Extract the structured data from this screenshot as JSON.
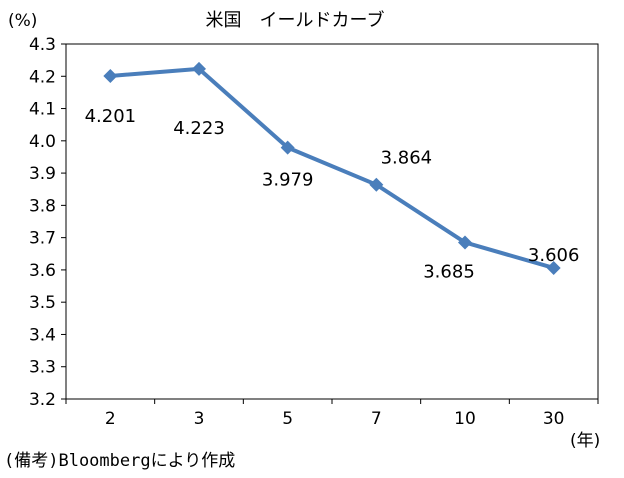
{
  "chart_data": {
    "type": "line",
    "title": "米国　イールドカーブ",
    "ylabel": "(%)",
    "xlabel": "(年)",
    "categories": [
      "2",
      "3",
      "5",
      "7",
      "10",
      "30"
    ],
    "series": [
      {
        "values": [
          4.201,
          4.223,
          3.979,
          3.864,
          3.685,
          3.606
        ]
      }
    ],
    "data_labels": [
      "4.201",
      "4.223",
      "3.979",
      "3.864",
      "3.685",
      "3.606"
    ],
    "ylim": [
      3.2,
      4.3
    ],
    "yticks": [
      "4.3",
      "4.2",
      "4.1",
      "4.0",
      "3.9",
      "3.8",
      "3.7",
      "3.6",
      "3.5",
      "3.4",
      "3.3",
      "3.2"
    ],
    "grid": false,
    "legend": "none",
    "line_color": "#4a7ebb"
  },
  "source_note": "(備考)Bloombergにより作成"
}
